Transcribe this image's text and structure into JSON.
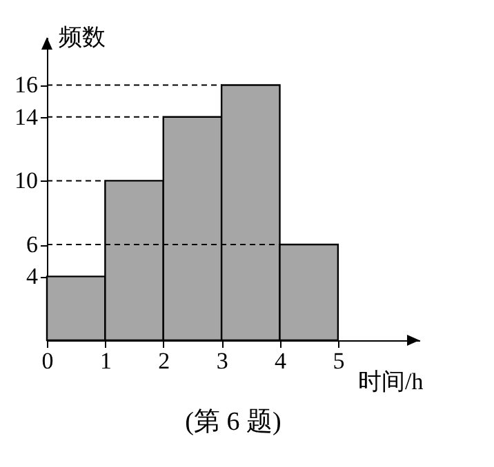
{
  "chart_data": {
    "type": "histogram",
    "xlabel": "时间/h",
    "ylabel": "频数",
    "annotations": [
      "(第 6 题)"
    ],
    "bins": [
      0,
      1,
      2,
      3,
      4,
      5
    ],
    "values": [
      4,
      10,
      14,
      16,
      6
    ],
    "color": "#a6a6a6",
    "xlim": [
      0,
      6.4
    ],
    "ylim": [
      0,
      19
    ],
    "xticks": [
      0,
      1,
      2,
      3,
      4,
      5
    ],
    "yticks": [
      4,
      6,
      10,
      14,
      16
    ],
    "grid": false,
    "ref_lines": [
      {
        "axis": "y",
        "value": 6,
        "line_style": "dashed"
      },
      {
        "axis": "y",
        "value": 10,
        "line_style": "dashed"
      },
      {
        "axis": "y",
        "value": 14,
        "line_style": "dashed"
      },
      {
        "axis": "y",
        "value": 16,
        "line_style": "dashed"
      }
    ]
  }
}
